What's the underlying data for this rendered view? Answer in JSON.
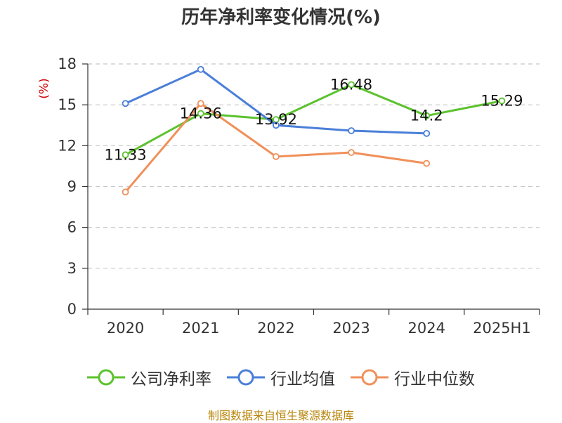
{
  "title": "历年净利率变化情况(%)",
  "source": "制图数据来自恒生聚源数据库",
  "chart_data": {
    "type": "line",
    "title": "历年净利率变化情况(%)",
    "ylabel": "(%)",
    "xlabel": "",
    "categories": [
      "2020",
      "2021",
      "2022",
      "2023",
      "2024",
      "2025H1"
    ],
    "ylim": [
      0,
      18
    ],
    "yticks": [
      0,
      3,
      6,
      9,
      12,
      15,
      18
    ],
    "grid": true,
    "legend_position": "bottom",
    "series": [
      {
        "name": "公司净利率",
        "color": "#5cc22e",
        "values": [
          11.33,
          14.36,
          13.92,
          16.48,
          14.2,
          15.29
        ],
        "labels": [
          "11.33",
          "14.36",
          "13.92",
          "16.48",
          "14.2",
          "15.29"
        ]
      },
      {
        "name": "行业均值",
        "color": "#4a7fd9",
        "values": [
          15.1,
          17.6,
          13.5,
          13.1,
          12.9,
          null
        ]
      },
      {
        "name": "行业中位数",
        "color": "#f0905a",
        "values": [
          8.6,
          15.1,
          11.2,
          11.5,
          10.7,
          null
        ]
      }
    ]
  }
}
